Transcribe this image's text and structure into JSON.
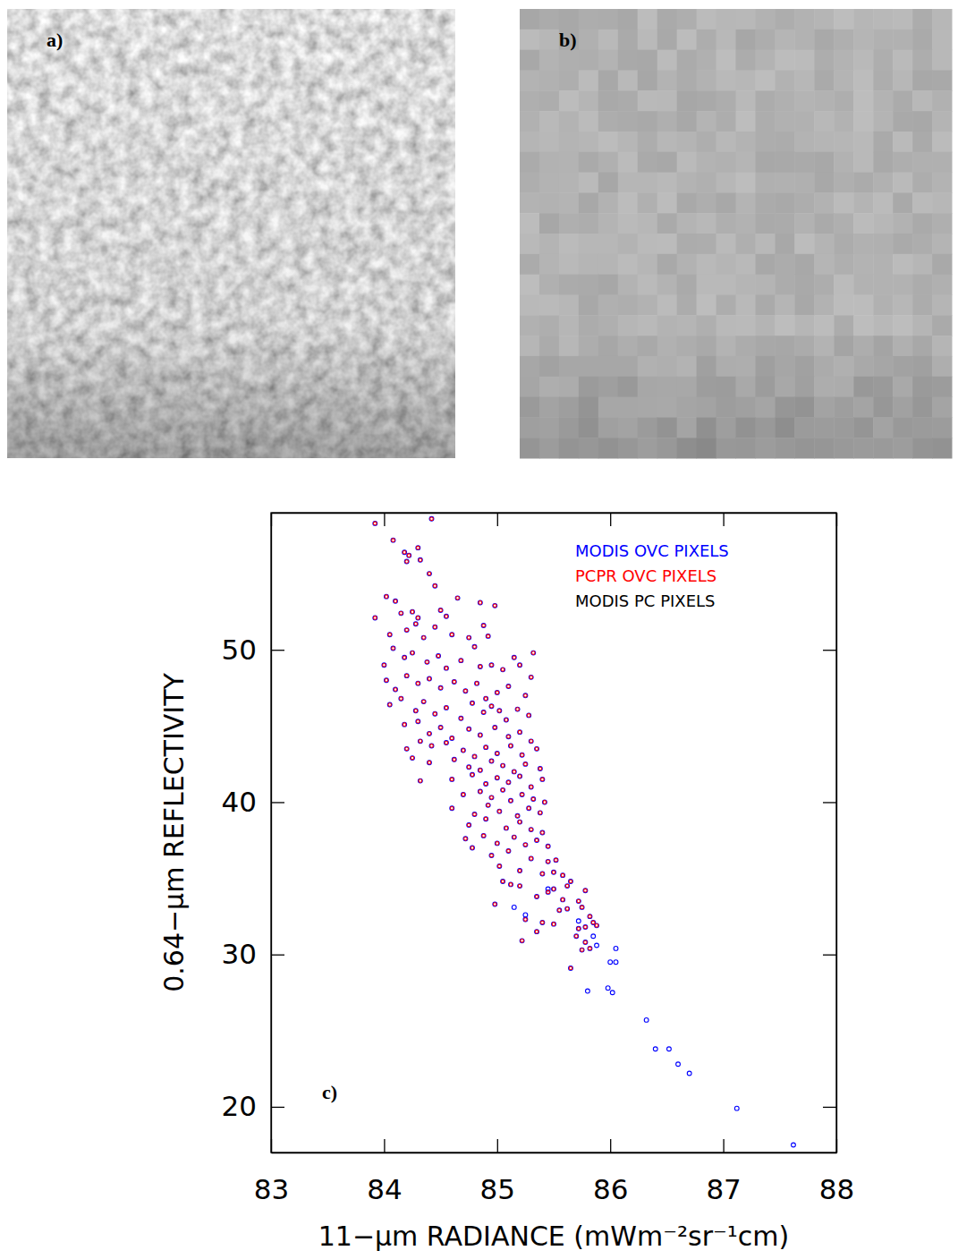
{
  "images": [
    {
      "label": "a)"
    },
    {
      "label": "b)"
    }
  ],
  "chart_data": {
    "type": "scatter",
    "x_label": "11−μm RADIANCE (mWm⁻²sr⁻¹cm)",
    "y_label": "0.64−μm REFLECTIVITY",
    "annotations": [
      "c)"
    ],
    "xlim": [
      83,
      88
    ],
    "xticks": [
      83,
      84,
      85,
      86,
      87,
      88
    ],
    "ylim": [
      17,
      59
    ],
    "yticks": [
      20,
      30,
      40,
      50
    ],
    "legend": "upper right",
    "grid": false,
    "series": [
      {
        "name": "MODIS OVC PIXELS",
        "color": "#0000ff",
        "marker": "circle",
        "x": [
          83.92,
          84.42,
          84.08,
          84.18,
          84.22,
          84.3,
          84.2,
          84.32,
          84.4,
          84.45,
          84.02,
          84.1,
          84.15,
          84.25,
          84.3,
          84.5,
          84.55,
          84.65,
          84.85,
          84.98,
          84.88,
          83.92,
          84.05,
          84.2,
          84.28,
          84.35,
          84.45,
          84.6,
          84.75,
          84.8,
          84.92,
          84.0,
          84.08,
          84.18,
          84.25,
          84.38,
          84.48,
          84.55,
          84.68,
          84.85,
          84.95,
          85.05,
          85.15,
          85.2,
          85.32,
          84.02,
          84.1,
          84.2,
          84.3,
          84.4,
          84.5,
          84.62,
          84.72,
          84.82,
          84.9,
          85.0,
          85.1,
          85.25,
          85.3,
          84.05,
          84.15,
          84.28,
          84.35,
          84.45,
          84.55,
          84.68,
          84.78,
          84.88,
          84.95,
          85.02,
          85.08,
          85.18,
          85.28,
          84.18,
          84.3,
          84.4,
          84.5,
          84.6,
          84.75,
          84.85,
          84.98,
          85.1,
          85.2,
          85.3,
          84.2,
          84.32,
          84.42,
          84.55,
          84.7,
          84.8,
          84.9,
          85.0,
          85.12,
          85.22,
          85.35,
          84.25,
          84.4,
          84.62,
          84.75,
          84.85,
          84.95,
          85.05,
          85.15,
          85.25,
          85.38,
          84.32,
          84.6,
          84.78,
          84.9,
          85.0,
          85.1,
          85.2,
          85.3,
          85.4,
          84.7,
          84.85,
          84.95,
          85.05,
          85.12,
          85.22,
          85.32,
          85.42,
          84.6,
          84.8,
          84.92,
          85.02,
          85.18,
          85.28,
          85.38,
          84.75,
          84.9,
          85.08,
          85.2,
          85.3,
          85.4,
          84.72,
          84.88,
          85.0,
          85.15,
          85.25,
          85.35,
          85.45,
          84.78,
          84.95,
          85.1,
          85.3,
          85.45,
          85.52,
          85.02,
          85.2,
          85.4,
          85.5,
          85.58,
          85.65,
          85.5,
          85.62,
          85.45,
          84.98,
          85.05,
          85.12,
          85.2,
          85.35,
          85.58,
          85.55,
          85.62,
          85.72,
          85.78,
          85.75,
          85.82,
          85.85,
          85.78,
          85.7,
          85.72,
          85.88,
          85.78,
          85.82,
          85.75,
          85.25,
          85.4,
          85.65,
          85.22,
          85.35,
          85.5,
          85.15,
          85.25,
          85.45,
          85.72,
          85.85,
          85.88,
          86.0,
          86.05,
          86.05,
          85.98,
          86.02,
          85.8,
          86.32,
          86.4,
          86.52,
          86.6,
          86.7,
          87.12,
          87.62
        ],
        "values": [
          58.3,
          58.6,
          57.2,
          56.4,
          56.2,
          56.7,
          55.8,
          55.9,
          55.0,
          54.2,
          53.5,
          53.2,
          52.4,
          52.5,
          52.1,
          52.6,
          52.2,
          53.4,
          53.1,
          52.9,
          51.6,
          52.1,
          51.0,
          51.3,
          51.7,
          50.8,
          51.5,
          51.0,
          50.8,
          50.2,
          50.9,
          49.0,
          50.1,
          49.5,
          49.8,
          49.2,
          49.6,
          48.8,
          49.3,
          48.9,
          49.0,
          48.7,
          49.5,
          49.0,
          49.8,
          48.0,
          47.4,
          48.3,
          47.8,
          48.1,
          47.5,
          47.9,
          47.3,
          47.8,
          46.8,
          47.2,
          47.6,
          47.0,
          48.2,
          46.4,
          46.8,
          46.0,
          46.6,
          45.8,
          46.2,
          45.5,
          46.5,
          45.9,
          46.3,
          46.0,
          45.4,
          46.1,
          45.7,
          45.1,
          45.3,
          44.5,
          44.9,
          44.2,
          44.8,
          44.4,
          44.9,
          44.3,
          44.6,
          44.0,
          43.5,
          44.0,
          43.7,
          43.9,
          43.4,
          43.0,
          43.6,
          43.2,
          43.7,
          43.1,
          43.5,
          42.9,
          42.6,
          42.8,
          42.3,
          42.1,
          42.7,
          42.4,
          42.0,
          42.5,
          42.2,
          41.4,
          41.5,
          41.8,
          41.2,
          41.6,
          41.3,
          41.7,
          41.0,
          41.5,
          40.5,
          40.7,
          40.3,
          40.8,
          40.1,
          40.5,
          40.2,
          40.0,
          39.6,
          39.2,
          39.8,
          39.4,
          39.1,
          39.6,
          39.3,
          38.5,
          38.9,
          38.3,
          38.7,
          38.2,
          38.0,
          37.6,
          37.8,
          37.3,
          37.7,
          37.2,
          37.5,
          37.1,
          37.0,
          36.5,
          36.8,
          36.3,
          36.1,
          36.2,
          35.8,
          35.5,
          35.3,
          35.4,
          35.2,
          34.8,
          34.3,
          34.5,
          34.1,
          33.3,
          34.8,
          34.6,
          34.5,
          33.8,
          33.6,
          32.9,
          33.0,
          33.5,
          34.2,
          33.1,
          32.5,
          32.1,
          31.8,
          31.2,
          31.7,
          31.9,
          30.8,
          30.4,
          30.3,
          32.3,
          32.1,
          29.1,
          30.9,
          31.5,
          32.0,
          33.1,
          32.6,
          34.3,
          32.2,
          31.2,
          30.6,
          29.5,
          29.5,
          30.4,
          27.8,
          27.5,
          27.6,
          25.7,
          23.8,
          23.8,
          22.8,
          22.2,
          19.9,
          17.5
        ]
      },
      {
        "name": "PCPR OVC PIXELS",
        "color": "#ff0000",
        "marker": "circle",
        "x": [
          83.92,
          84.42,
          84.08,
          84.18,
          84.22,
          84.3,
          84.2,
          84.32,
          84.4,
          84.45,
          84.02,
          84.1,
          84.15,
          84.25,
          84.3,
          84.5,
          84.55,
          84.65,
          84.85,
          84.98,
          84.88,
          83.92,
          84.05,
          84.2,
          84.28,
          84.35,
          84.45,
          84.6,
          84.75,
          84.8,
          84.92,
          84.0,
          84.08,
          84.18,
          84.25,
          84.38,
          84.48,
          84.55,
          84.68,
          84.85,
          84.95,
          85.05,
          85.15,
          85.2,
          85.32,
          84.02,
          84.1,
          84.2,
          84.3,
          84.4,
          84.5,
          84.62,
          84.72,
          84.82,
          84.9,
          85.0,
          85.1,
          85.25,
          85.3,
          84.05,
          84.15,
          84.28,
          84.35,
          84.45,
          84.55,
          84.68,
          84.78,
          84.88,
          84.95,
          85.02,
          85.08,
          85.18,
          85.28,
          84.18,
          84.3,
          84.4,
          84.5,
          84.6,
          84.75,
          84.85,
          84.98,
          85.1,
          85.2,
          85.3,
          84.2,
          84.32,
          84.42,
          84.55,
          84.7,
          84.8,
          84.9,
          85.0,
          85.12,
          85.22,
          85.35,
          84.25,
          84.4,
          84.62,
          84.75,
          84.85,
          84.95,
          85.05,
          85.15,
          85.25,
          85.38,
          84.32,
          84.6,
          84.78,
          84.9,
          85.0,
          85.1,
          85.2,
          85.3,
          85.4,
          84.7,
          84.85,
          84.95,
          85.05,
          85.12,
          85.22,
          85.32,
          85.42,
          84.6,
          84.8,
          84.92,
          85.02,
          85.18,
          85.28,
          85.38,
          84.75,
          84.9,
          85.08,
          85.2,
          85.3,
          85.4,
          84.72,
          84.88,
          85.0,
          85.15,
          85.25,
          85.35,
          85.45,
          84.78,
          84.95,
          85.1,
          85.3,
          85.45,
          85.52,
          85.02,
          85.2,
          85.4,
          85.5,
          85.58,
          85.65,
          85.5,
          85.62,
          85.45,
          84.98,
          85.05,
          85.12,
          85.2,
          85.35,
          85.58,
          85.55,
          85.62,
          85.72,
          85.78,
          85.75,
          85.82,
          85.85,
          85.78,
          85.7,
          85.72,
          85.88,
          85.78,
          85.82,
          85.75,
          85.25,
          85.4,
          85.65,
          85.22,
          85.35,
          85.5
        ],
        "values": [
          58.3,
          58.6,
          57.2,
          56.4,
          56.2,
          56.7,
          55.8,
          55.9,
          55.0,
          54.2,
          53.5,
          53.2,
          52.4,
          52.5,
          52.1,
          52.6,
          52.2,
          53.4,
          53.1,
          52.9,
          51.6,
          52.1,
          51.0,
          51.3,
          51.7,
          50.8,
          51.5,
          51.0,
          50.8,
          50.2,
          50.9,
          49.0,
          50.1,
          49.5,
          49.8,
          49.2,
          49.6,
          48.8,
          49.3,
          48.9,
          49.0,
          48.7,
          49.5,
          49.0,
          49.8,
          48.0,
          47.4,
          48.3,
          47.8,
          48.1,
          47.5,
          47.9,
          47.3,
          47.8,
          46.8,
          47.2,
          47.6,
          47.0,
          48.2,
          46.4,
          46.8,
          46.0,
          46.6,
          45.8,
          46.2,
          45.5,
          46.5,
          45.9,
          46.3,
          46.0,
          45.4,
          46.1,
          45.7,
          45.1,
          45.3,
          44.5,
          44.9,
          44.2,
          44.8,
          44.4,
          44.9,
          44.3,
          44.6,
          44.0,
          43.5,
          44.0,
          43.7,
          43.9,
          43.4,
          43.0,
          43.6,
          43.2,
          43.7,
          43.1,
          43.5,
          42.9,
          42.6,
          42.8,
          42.3,
          42.1,
          42.7,
          42.4,
          42.0,
          42.5,
          42.2,
          41.4,
          41.5,
          41.8,
          41.2,
          41.6,
          41.3,
          41.7,
          41.0,
          41.5,
          40.5,
          40.7,
          40.3,
          40.8,
          40.1,
          40.5,
          40.2,
          40.0,
          39.6,
          39.2,
          39.8,
          39.4,
          39.1,
          39.6,
          39.3,
          38.5,
          38.9,
          38.3,
          38.7,
          38.2,
          38.0,
          37.6,
          37.8,
          37.3,
          37.7,
          37.2,
          37.5,
          37.1,
          37.0,
          36.5,
          36.8,
          36.3,
          36.1,
          36.2,
          35.8,
          35.5,
          35.3,
          35.4,
          35.2,
          34.8,
          34.3,
          34.5,
          34.1,
          33.3,
          34.8,
          34.6,
          34.5,
          33.8,
          33.6,
          32.9,
          33.0,
          33.5,
          34.2,
          33.1,
          32.5,
          32.1,
          31.8,
          31.2,
          31.7,
          31.9,
          30.8,
          30.4,
          30.3,
          32.3,
          32.1,
          29.1,
          30.9,
          31.5,
          32.0
        ]
      },
      {
        "name": "MODIS PC PIXELS",
        "color": "#000000",
        "marker": "circle",
        "x": [],
        "values": []
      }
    ]
  }
}
